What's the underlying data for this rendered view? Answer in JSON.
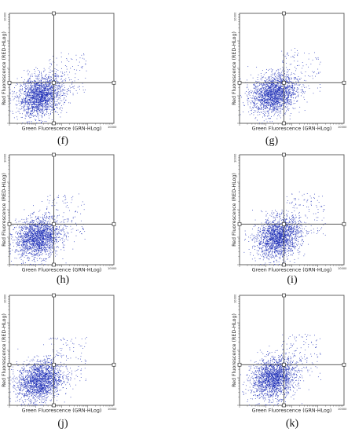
{
  "figure": {
    "x_axis_label": "Green Fluorescence (GRN-HLog)",
    "y_axis_label": "Red Fluorescence (RED-HLog)",
    "max_tick_label": "10000"
  },
  "colors": {
    "events": "#1a2bb5",
    "frame": "#555555",
    "gate": "#444444"
  },
  "chart_data": [
    {
      "type": "scatter",
      "panel": "(f)",
      "xlabel": "Green Fluorescence (GRN-HLog)",
      "ylabel": "Red Fluorescence (RED-HLog)",
      "xlim": [
        1,
        10000
      ],
      "ylim": [
        1,
        10000
      ],
      "scale": "log",
      "gate": {
        "x": 50,
        "y": 30
      },
      "cluster": {
        "x": 15,
        "y": 10
      },
      "approx_event_count": 2000
    },
    {
      "type": "scatter",
      "panel": "(g)",
      "xlabel": "Green Fluorescence (GRN-HLog)",
      "ylabel": "Red Fluorescence (RED-HLog)",
      "xlim": [
        1,
        10000
      ],
      "ylim": [
        1,
        10000
      ],
      "scale": "log",
      "gate": {
        "x": 50,
        "y": 30
      },
      "cluster": {
        "x": 20,
        "y": 12
      },
      "approx_event_count": 2000
    },
    {
      "type": "scatter",
      "panel": "(h)",
      "xlabel": "Green Fluorescence (GRN-HLog)",
      "ylabel": "Red Fluorescence (RED-HLog)",
      "xlim": [
        1,
        10000
      ],
      "ylim": [
        1,
        10000
      ],
      "scale": "log",
      "gate": {
        "x": 50,
        "y": 30
      },
      "cluster": {
        "x": 12,
        "y": 10
      },
      "approx_event_count": 2000
    },
    {
      "type": "scatter",
      "panel": "(i)",
      "xlabel": "Green Fluorescence (GRN-HLog)",
      "ylabel": "Red Fluorescence (RED-HLog)",
      "xlim": [
        1,
        10000
      ],
      "ylim": [
        1,
        10000
      ],
      "scale": "log",
      "gate": {
        "x": 50,
        "y": 30
      },
      "cluster": {
        "x": 30,
        "y": 10
      },
      "approx_event_count": 2000
    },
    {
      "type": "scatter",
      "panel": "(j)",
      "xlabel": "Green Fluorescence (GRN-HLog)",
      "ylabel": "Red Fluorescence (RED-HLog)",
      "xlim": [
        1,
        10000
      ],
      "ylim": [
        1,
        10000
      ],
      "scale": "log",
      "gate": {
        "x": 50,
        "y": 30
      },
      "cluster": {
        "x": 14,
        "y": 8
      },
      "approx_event_count": 2000
    },
    {
      "type": "scatter",
      "panel": "(k)",
      "xlabel": "Green Fluorescence (GRN-HLog)",
      "ylabel": "Red Fluorescence (RED-HLog)",
      "xlim": [
        1,
        10000
      ],
      "ylim": [
        1,
        10000
      ],
      "scale": "log",
      "gate": {
        "x": 50,
        "y": 30
      },
      "cluster": {
        "x": 20,
        "y": 10
      },
      "approx_event_count": 2000
    }
  ]
}
